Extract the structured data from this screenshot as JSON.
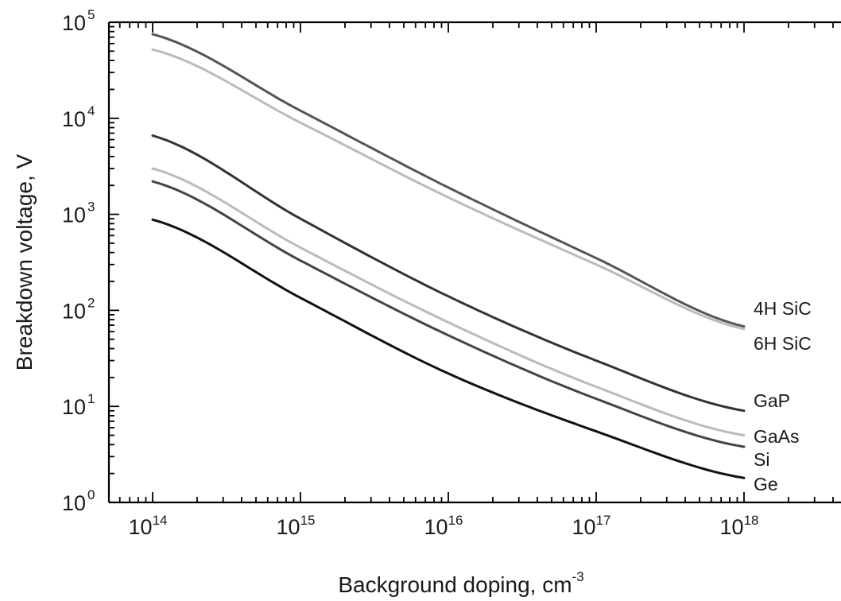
{
  "chart_data": {
    "type": "line",
    "title": "",
    "xlabel": "Background doping, cm",
    "xlabel_sup": "-3",
    "ylabel": "Breakdown voltage, V",
    "x_scale": "log",
    "y_scale": "log",
    "xlim": [
      50000000000000.0,
      5e+18
    ],
    "ylim": [
      1,
      100000
    ],
    "x_tick_labels": [
      {
        "value": 100000000000000.0,
        "base": "10",
        "exp": "14"
      },
      {
        "value": 1000000000000000.0,
        "base": "10",
        "exp": "15"
      },
      {
        "value": 1e+16,
        "base": "10",
        "exp": "16"
      },
      {
        "value": 1e+17,
        "base": "10",
        "exp": "17"
      },
      {
        "value": 1e+18,
        "base": "10",
        "exp": "18"
      }
    ],
    "y_tick_labels": [
      {
        "value": 1,
        "base": "10",
        "exp": "0"
      },
      {
        "value": 10,
        "base": "10",
        "exp": "1"
      },
      {
        "value": 100,
        "base": "10",
        "exp": "2"
      },
      {
        "value": 1000,
        "base": "10",
        "exp": "3"
      },
      {
        "value": 10000,
        "base": "10",
        "exp": "4"
      },
      {
        "value": 100000,
        "base": "10",
        "exp": "5"
      }
    ],
    "grid": false,
    "legend": "labels at right end of each line",
    "x": [
      100000000000000.0,
      1000000000000000.0,
      1e+16,
      1e+17,
      1e+18
    ],
    "series": [
      {
        "name": "4H SiC",
        "color": "#555555",
        "values": [
          75000,
          12000,
          1900,
          350,
          68
        ]
      },
      {
        "name": "6H SiC",
        "color": "#bbbbbb",
        "values": [
          52000,
          9000,
          1500,
          300,
          64
        ]
      },
      {
        "name": "GaP",
        "color": "#333333",
        "values": [
          6600,
          900,
          140,
          30,
          9
        ]
      },
      {
        "name": "GaAs",
        "color": "#bbbbbb",
        "values": [
          3000,
          450,
          75,
          16,
          5
        ]
      },
      {
        "name": "Si",
        "color": "#444444",
        "values": [
          2200,
          330,
          55,
          12,
          3.8
        ]
      },
      {
        "name": "Ge",
        "color": "#111111",
        "values": [
          880,
          135,
          22,
          5.5,
          1.8
        ]
      }
    ]
  }
}
